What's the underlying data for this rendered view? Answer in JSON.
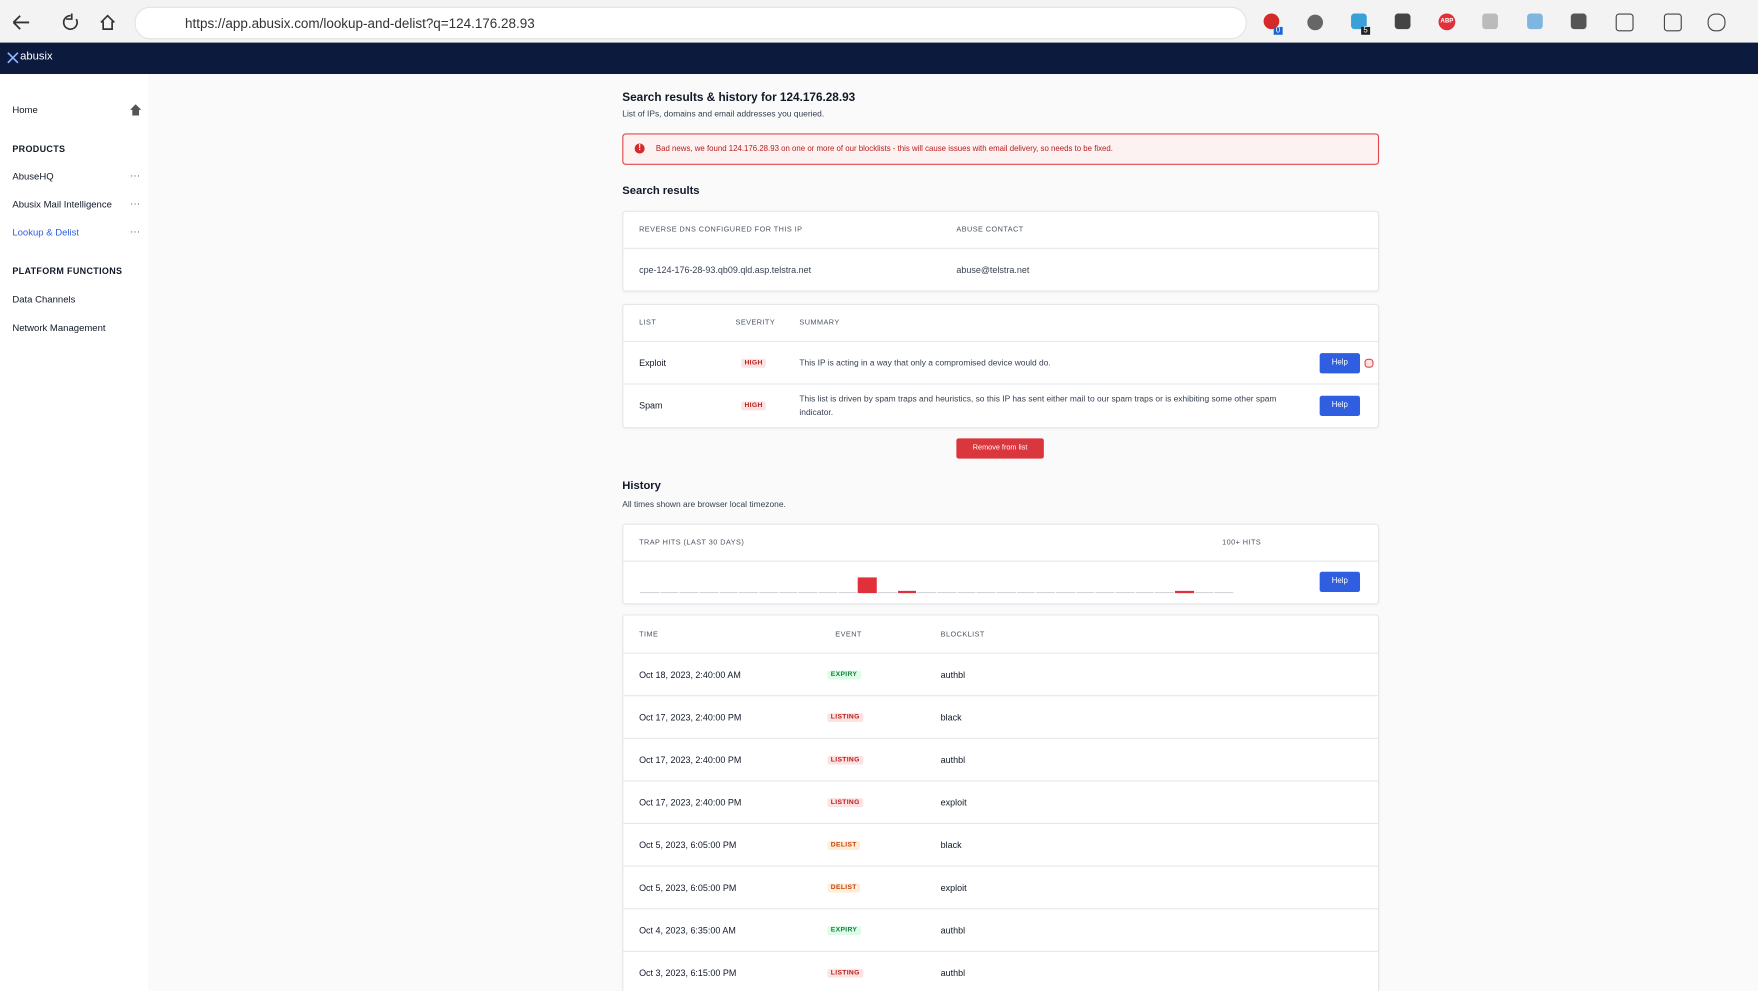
{
  "browser": {
    "url": "https://app.abusix.com/lookup-and-delist?q=124.176.28.93",
    "badges": [
      "0",
      "5",
      "ABP"
    ]
  },
  "nav": {
    "brand": "abusix"
  },
  "sidebar": {
    "home": "Home",
    "sections": [
      {
        "title": "PRODUCTS",
        "items": [
          "AbuseHQ",
          "Abusix Mail Intelligence",
          "Lookup & Delist"
        ]
      },
      {
        "title": "PLATFORM FUNCTIONS",
        "items": [
          "Data Channels",
          "Network Management"
        ]
      }
    ]
  },
  "header": {
    "title": "Search results & history for 124.176.28.93",
    "subtitle": "List of IPs, domains and email addresses you queried."
  },
  "alert": "Bad news, we found 124.176.28.93 on one or more of our blocklists - this will cause issues with email delivery, so needs to be fixed.",
  "search_results": {
    "title": "Search results",
    "dns_table": {
      "headers": [
        "REVERSE DNS CONFIGURED FOR THIS IP",
        "ABUSE CONTACT"
      ],
      "row": [
        "cpe-124-176-28-93.qb09.qld.asp.telstra.net",
        "abuse@telstra.net"
      ]
    },
    "lists_table": {
      "headers": [
        "LIST",
        "SEVERITY",
        "SUMMARY"
      ],
      "rows": [
        {
          "list": "Exploit",
          "severity": "HIGH",
          "summary": "This IP is acting in a way that only a compromised device would do.",
          "button": "Help"
        },
        {
          "list": "Spam",
          "severity": "HIGH",
          "summary": "This list is driven by spam traps and heuristics, so this IP has sent either mail to our spam traps or is exhibiting some other spam indicator.",
          "button": "Help"
        }
      ]
    },
    "remove_button": "Remove from list"
  },
  "history": {
    "title": "History",
    "subtitle": "All times shown are browser local timezone.",
    "trap_hits": {
      "title": "TRAP HITS (LAST 30 DAYS)",
      "max_label": "100+ HITS",
      "button": "Help",
      "color": "#e0303a",
      "values": [
        0,
        0,
        0,
        0,
        0,
        0,
        0,
        0,
        0,
        0,
        0,
        100,
        0,
        12,
        0,
        0,
        0,
        0,
        0,
        0,
        0,
        0,
        0,
        0,
        0,
        0,
        0,
        12,
        0,
        0
      ]
    },
    "table": {
      "headers": [
        "TIME",
        "EVENT",
        "BLOCKLIST"
      ],
      "rows": [
        {
          "time": "Oct 18, 2023, 2:40:00 AM",
          "event": "EXPIRY",
          "event_color": "#15803d",
          "event_bg": "#dcfce7",
          "blocklist": "authbl"
        },
        {
          "time": "Oct 17, 2023, 2:40:00 PM",
          "event": "LISTING",
          "event_color": "#b91c1c",
          "event_bg": "#fde2e2",
          "blocklist": "black"
        },
        {
          "time": "Oct 17, 2023, 2:40:00 PM",
          "event": "LISTING",
          "event_color": "#b91c1c",
          "event_bg": "#fde2e2",
          "blocklist": "authbl"
        },
        {
          "time": "Oct 17, 2023, 2:40:00 PM",
          "event": "LISTING",
          "event_color": "#b91c1c",
          "event_bg": "#fde2e2",
          "blocklist": "exploit"
        },
        {
          "time": "Oct 5, 2023, 6:05:00 PM",
          "event": "DELIST",
          "event_color": "#c2410c",
          "event_bg": "#ffedd5",
          "blocklist": "black"
        },
        {
          "time": "Oct 5, 2023, 6:05:00 PM",
          "event": "DELIST",
          "event_color": "#c2410c",
          "event_bg": "#ffedd5",
          "blocklist": "exploit"
        },
        {
          "time": "Oct 4, 2023, 6:35:00 AM",
          "event": "EXPIRY",
          "event_color": "#15803d",
          "event_bg": "#dcfce7",
          "blocklist": "authbl"
        },
        {
          "time": "Oct 3, 2023, 6:15:00 PM",
          "event": "LISTING",
          "event_color": "#b91c1c",
          "event_bg": "#fde2e2",
          "blocklist": "authbl"
        }
      ]
    }
  }
}
